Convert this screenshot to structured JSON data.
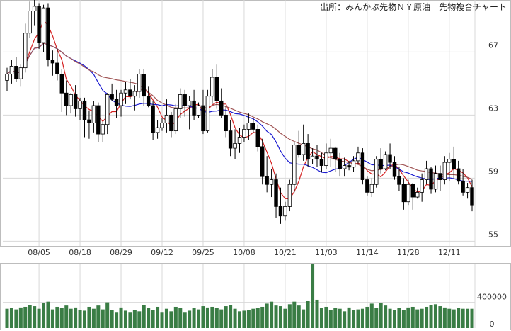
{
  "chart_data": {
    "type": "candlestick",
    "title": "出所：みんかぶ先物ＮＹ原油　先物複合チャート",
    "price_axis": {
      "ticks": [
        55,
        59,
        63,
        67
      ],
      "range": [
        54.7,
        70.3
      ],
      "side": "right"
    },
    "volume_axis": {
      "ticks": [
        0,
        400000
      ],
      "tick_labels": [
        "0",
        "400000"
      ],
      "range": [
        0,
        1000000
      ]
    },
    "x_tick_labels": [
      "08/05",
      "08/18",
      "08/29",
      "09/12",
      "09/25",
      "10/08",
      "10/21",
      "11/03",
      "11/14",
      "11/28",
      "12/11"
    ],
    "x_tick_index": [
      7,
      16,
      25,
      34,
      43,
      52,
      61,
      70,
      79,
      88,
      97
    ],
    "grid": true,
    "colors": {
      "up_fill": "#ffffff",
      "down_fill": "#000000",
      "candle_edge": "#000000",
      "ma_short": "#d42020",
      "ma_mid": "#1a1ad0",
      "ma_long": "#a05555",
      "volume": "#3a7d45"
    },
    "candles": [
      [
        65.2,
        66.0,
        64.5,
        65.6
      ],
      [
        65.6,
        66.5,
        65.0,
        66.1
      ],
      [
        66.1,
        66.7,
        65.1,
        65.3
      ],
      [
        65.3,
        66.2,
        64.8,
        66.0
      ],
      [
        66.0,
        68.8,
        65.7,
        68.2
      ],
      [
        68.2,
        70.2,
        67.9,
        69.6
      ],
      [
        69.6,
        70.3,
        68.7,
        69.9
      ],
      [
        69.9,
        70.1,
        67.2,
        67.6
      ],
      [
        67.6,
        70.0,
        67.0,
        69.8
      ],
      [
        69.8,
        70.1,
        66.1,
        66.5
      ],
      [
        66.5,
        67.1,
        65.5,
        66.3
      ],
      [
        66.3,
        67.2,
        65.2,
        65.6
      ],
      [
        65.6,
        65.9,
        63.2,
        64.4
      ],
      [
        64.4,
        65.2,
        63.0,
        63.6
      ],
      [
        63.6,
        64.4,
        63.1,
        64.3
      ],
      [
        64.3,
        64.9,
        62.9,
        63.4
      ],
      [
        63.4,
        64.1,
        62.7,
        63.9
      ],
      [
        63.9,
        64.1,
        61.6,
        62.7
      ],
      [
        62.7,
        63.3,
        61.5,
        62.5
      ],
      [
        62.5,
        63.9,
        61.9,
        63.6
      ],
      [
        63.6,
        63.8,
        61.3,
        61.8
      ],
      [
        61.8,
        62.6,
        61.3,
        62.4
      ],
      [
        62.4,
        64.4,
        61.8,
        64.3
      ],
      [
        64.3,
        65.0,
        63.9,
        64.0
      ],
      [
        64.0,
        64.6,
        62.8,
        63.6
      ],
      [
        63.6,
        64.6,
        62.9,
        64.4
      ],
      [
        64.4,
        65.1,
        63.7,
        64.6
      ],
      [
        64.6,
        65.3,
        64.0,
        64.2
      ],
      [
        64.2,
        64.9,
        63.3,
        64.5
      ],
      [
        64.5,
        65.9,
        64.1,
        65.6
      ],
      [
        65.6,
        65.9,
        63.6,
        64.2
      ],
      [
        64.2,
        64.8,
        63.5,
        63.6
      ],
      [
        63.6,
        63.9,
        61.4,
        61.9
      ],
      [
        61.9,
        62.7,
        61.5,
        62.2
      ],
      [
        62.2,
        62.8,
        62.0,
        62.5
      ],
      [
        62.5,
        64.0,
        61.9,
        63.0
      ],
      [
        63.0,
        63.2,
        61.6,
        62.0
      ],
      [
        62.0,
        63.7,
        61.8,
        63.4
      ],
      [
        63.4,
        64.7,
        62.8,
        64.3
      ],
      [
        64.3,
        64.6,
        62.9,
        63.6
      ],
      [
        63.6,
        64.2,
        62.1,
        63.9
      ],
      [
        63.9,
        64.6,
        62.7,
        63.0
      ],
      [
        63.0,
        63.8,
        62.8,
        63.6
      ],
      [
        63.6,
        64.6,
        61.8,
        62.0
      ],
      [
        62.0,
        64.6,
        61.9,
        64.2
      ],
      [
        64.2,
        65.9,
        63.7,
        65.4
      ],
      [
        65.4,
        66.2,
        63.4,
        63.9
      ],
      [
        63.9,
        64.7,
        62.8,
        63.0
      ],
      [
        63.0,
        63.6,
        61.6,
        62.0
      ],
      [
        62.0,
        62.7,
        60.4,
        60.9
      ],
      [
        60.9,
        62.1,
        60.2,
        61.2
      ],
      [
        61.2,
        62.2,
        60.6,
        61.6
      ],
      [
        61.6,
        62.4,
        61.3,
        62.1
      ],
      [
        62.1,
        63.1,
        61.4,
        62.5
      ],
      [
        62.5,
        62.8,
        61.9,
        62.1
      ],
      [
        62.1,
        62.4,
        60.7,
        61.0
      ],
      [
        61.0,
        61.5,
        58.6,
        59.1
      ],
      [
        59.1,
        60.4,
        58.1,
        58.6
      ],
      [
        58.6,
        59.6,
        57.8,
        58.9
      ],
      [
        58.9,
        59.3,
        56.5,
        57.2
      ],
      [
        57.2,
        58.4,
        56.1,
        56.6
      ],
      [
        56.6,
        57.5,
        56.3,
        57.2
      ],
      [
        57.2,
        58.9,
        56.9,
        58.6
      ],
      [
        58.6,
        61.3,
        58.1,
        61.1
      ],
      [
        61.1,
        62.0,
        60.3,
        60.5
      ],
      [
        60.5,
        62.4,
        60.1,
        61.2
      ],
      [
        61.2,
        61.8,
        59.7,
        60.2
      ],
      [
        60.2,
        60.9,
        59.9,
        60.4
      ],
      [
        60.4,
        61.1,
        59.7,
        60.2
      ],
      [
        60.2,
        60.6,
        59.4,
        59.8
      ],
      [
        59.8,
        61.2,
        59.6,
        60.6
      ],
      [
        60.6,
        61.5,
        59.7,
        60.9
      ],
      [
        60.9,
        61.0,
        59.4,
        60.2
      ],
      [
        60.2,
        60.6,
        59.1,
        59.6
      ],
      [
        59.6,
        60.3,
        59.1,
        59.8
      ],
      [
        59.8,
        60.1,
        59.5,
        59.7
      ],
      [
        59.7,
        60.4,
        59.4,
        60.1
      ],
      [
        60.1,
        61.0,
        59.9,
        60.6
      ],
      [
        60.6,
        60.9,
        58.6,
        58.9
      ],
      [
        58.9,
        59.1,
        57.9,
        58.1
      ],
      [
        58.1,
        59.0,
        57.8,
        58.6
      ],
      [
        58.6,
        60.4,
        58.4,
        60.2
      ],
      [
        60.2,
        60.9,
        59.3,
        59.6
      ],
      [
        59.6,
        60.7,
        59.5,
        60.5
      ],
      [
        60.5,
        61.2,
        59.6,
        60.0
      ],
      [
        60.0,
        60.4,
        58.9,
        59.1
      ],
      [
        59.1,
        59.7,
        58.2,
        58.6
      ],
      [
        58.6,
        59.0,
        57.0,
        57.5
      ],
      [
        57.5,
        58.9,
        57.3,
        58.6
      ],
      [
        58.6,
        58.7,
        57.0,
        57.8
      ],
      [
        57.8,
        58.4,
        57.7,
        58.1
      ],
      [
        58.1,
        59.3,
        57.5,
        58.9
      ],
      [
        58.9,
        60.1,
        58.6,
        59.6
      ],
      [
        59.6,
        59.7,
        58.0,
        58.3
      ],
      [
        58.3,
        59.8,
        58.1,
        59.3
      ],
      [
        59.3,
        59.8,
        58.2,
        58.9
      ],
      [
        58.9,
        60.4,
        58.6,
        60.0
      ],
      [
        60.0,
        60.6,
        58.8,
        60.2
      ],
      [
        60.2,
        61.0,
        59.0,
        59.6
      ],
      [
        59.6,
        60.1,
        58.6,
        58.8
      ],
      [
        58.8,
        59.6,
        57.9,
        58.1
      ],
      [
        58.1,
        58.7,
        57.7,
        58.4
      ],
      [
        58.4,
        58.9,
        56.9,
        57.3
      ]
    ],
    "volume": [
      300000,
      310000,
      290000,
      320000,
      330000,
      360000,
      340000,
      300000,
      390000,
      410000,
      290000,
      330000,
      310000,
      350000,
      300000,
      320000,
      280000,
      270000,
      330000,
      300000,
      350000,
      290000,
      400000,
      280000,
      250000,
      320000,
      270000,
      250000,
      280000,
      260000,
      360000,
      310000,
      280000,
      330000,
      250000,
      300000,
      260000,
      330000,
      310000,
      250000,
      270000,
      310000,
      290000,
      340000,
      320000,
      330000,
      310000,
      290000,
      340000,
      360000,
      300000,
      260000,
      270000,
      280000,
      300000,
      310000,
      330000,
      380000,
      410000,
      350000,
      340000,
      300000,
      370000,
      410000,
      350000,
      290000,
      420000,
      990000,
      440000,
      310000,
      330000,
      280000,
      310000,
      300000,
      260000,
      320000,
      280000,
      290000,
      300000,
      330000,
      380000,
      310000,
      390000,
      350000,
      300000,
      280000,
      310000,
      280000,
      320000,
      330000,
      290000,
      300000,
      330000,
      360000,
      370000,
      340000,
      320000,
      300000,
      290000,
      310000,
      300000,
      300000,
      300000
    ]
  }
}
